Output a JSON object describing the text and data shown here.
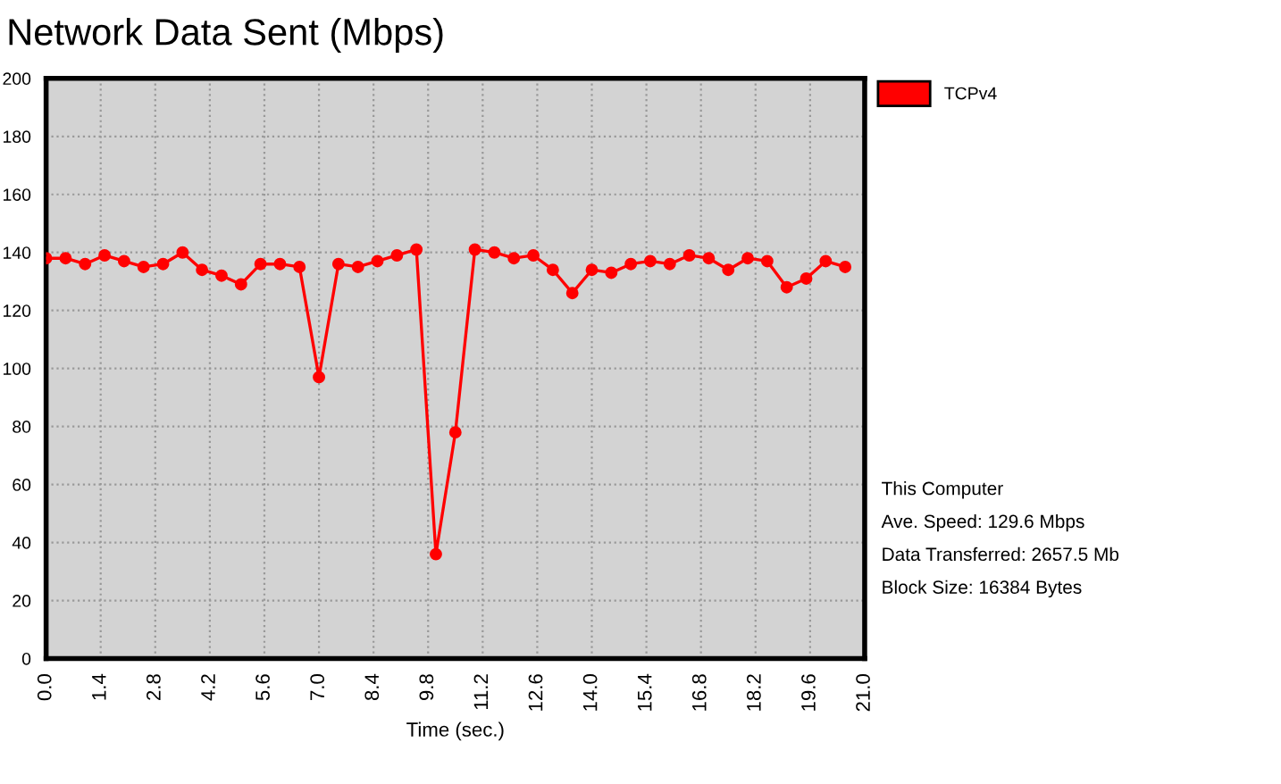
{
  "chart_data": {
    "type": "line",
    "title": "Network Data Sent (Mbps)",
    "xlabel": "Time (sec.)",
    "x": [
      0.0,
      0.5,
      1.0,
      1.5,
      2.0,
      2.5,
      3.0,
      3.5,
      4.0,
      4.5,
      5.0,
      5.5,
      6.0,
      6.5,
      7.0,
      7.5,
      8.0,
      8.5,
      9.0,
      9.5,
      10.0,
      10.5,
      11.0,
      11.5,
      12.0,
      12.5,
      13.0,
      13.5,
      14.0,
      14.5,
      15.0,
      15.5,
      16.0,
      16.5,
      17.0,
      17.5,
      18.0,
      18.5,
      19.0,
      19.5,
      20.0,
      20.5
    ],
    "series": [
      {
        "name": "TCPv4",
        "color": "#ff0000",
        "values": [
          138,
          138,
          136,
          139,
          137,
          135,
          136,
          140,
          134,
          132,
          129,
          136,
          136,
          135,
          97,
          136,
          135,
          137,
          139,
          141,
          36,
          78,
          141,
          140,
          138,
          139,
          134,
          126,
          134,
          133,
          136,
          137,
          136,
          139,
          138,
          134,
          138,
          137,
          128,
          131,
          137,
          135
        ]
      }
    ],
    "xlim": [
      0,
      21
    ],
    "ylim": [
      0,
      200
    ],
    "xticks": [
      {
        "value": 0,
        "label": "0.0"
      },
      {
        "value": 1.4,
        "label": "1.4"
      },
      {
        "value": 2.8,
        "label": "2.8"
      },
      {
        "value": 4.2,
        "label": "4.2"
      },
      {
        "value": 5.6,
        "label": "5.6"
      },
      {
        "value": 7,
        "label": "7.0"
      },
      {
        "value": 8.4,
        "label": "8.4"
      },
      {
        "value": 9.8,
        "label": "9.8"
      },
      {
        "value": 11.2,
        "label": "11.2"
      },
      {
        "value": 12.6,
        "label": "12.6"
      },
      {
        "value": 14,
        "label": "14.0"
      },
      {
        "value": 15.4,
        "label": "15.4"
      },
      {
        "value": 16.8,
        "label": "16.8"
      },
      {
        "value": 18.2,
        "label": "18.2"
      },
      {
        "value": 19.6,
        "label": "19.6"
      },
      {
        "value": 21,
        "label": "21.0"
      }
    ],
    "yticks": [
      0,
      20,
      40,
      60,
      80,
      100,
      120,
      140,
      160,
      180,
      200
    ],
    "grid": true,
    "legend": "top right",
    "marker": "circle",
    "line_style": "solid",
    "annotations": [
      "This Computer",
      "Ave. Speed: 129.6 Mbps",
      "Data Transferred: 2657.5 Mb",
      "Block Size: 16384 Bytes"
    ]
  }
}
